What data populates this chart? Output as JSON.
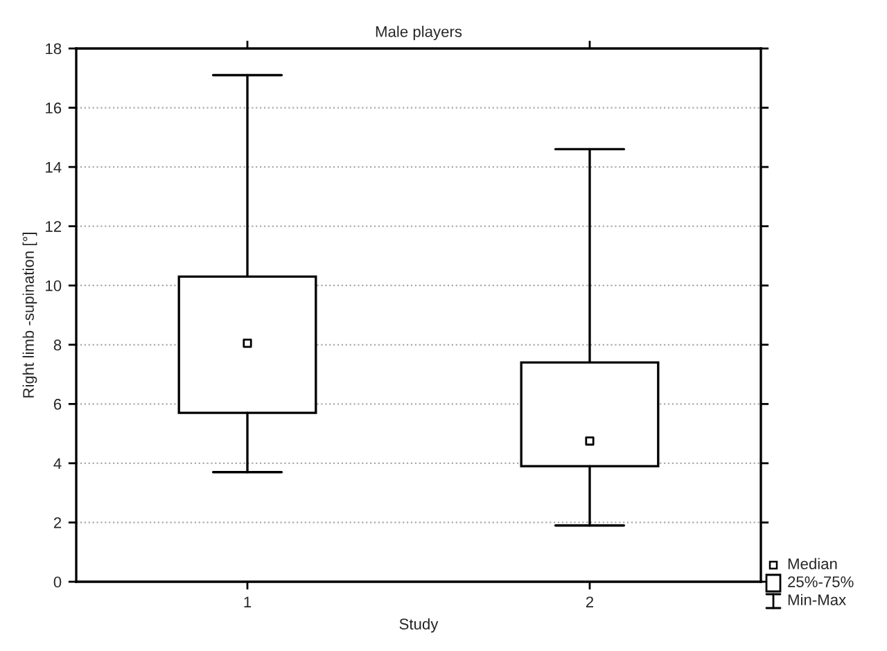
{
  "chart_data": {
    "type": "box",
    "title": "Male players",
    "xlabel": "Study",
    "ylabel": "Right limb -supination [°]",
    "categories": [
      "1",
      "2"
    ],
    "boxes": [
      {
        "low": 3.7,
        "q1": 5.7,
        "median": 8.05,
        "q3": 10.3,
        "high": 17.1
      },
      {
        "low": 1.9,
        "q1": 3.9,
        "median": 4.75,
        "q3": 7.4,
        "high": 14.6
      }
    ],
    "marker": "square",
    "annotations": [
      "Median",
      "25%-75%",
      "Min-Max"
    ],
    "ylim": [
      0,
      18
    ],
    "yticks": [
      0,
      2,
      4,
      6,
      8,
      10,
      12,
      14,
      16,
      18
    ],
    "grid": "y"
  }
}
